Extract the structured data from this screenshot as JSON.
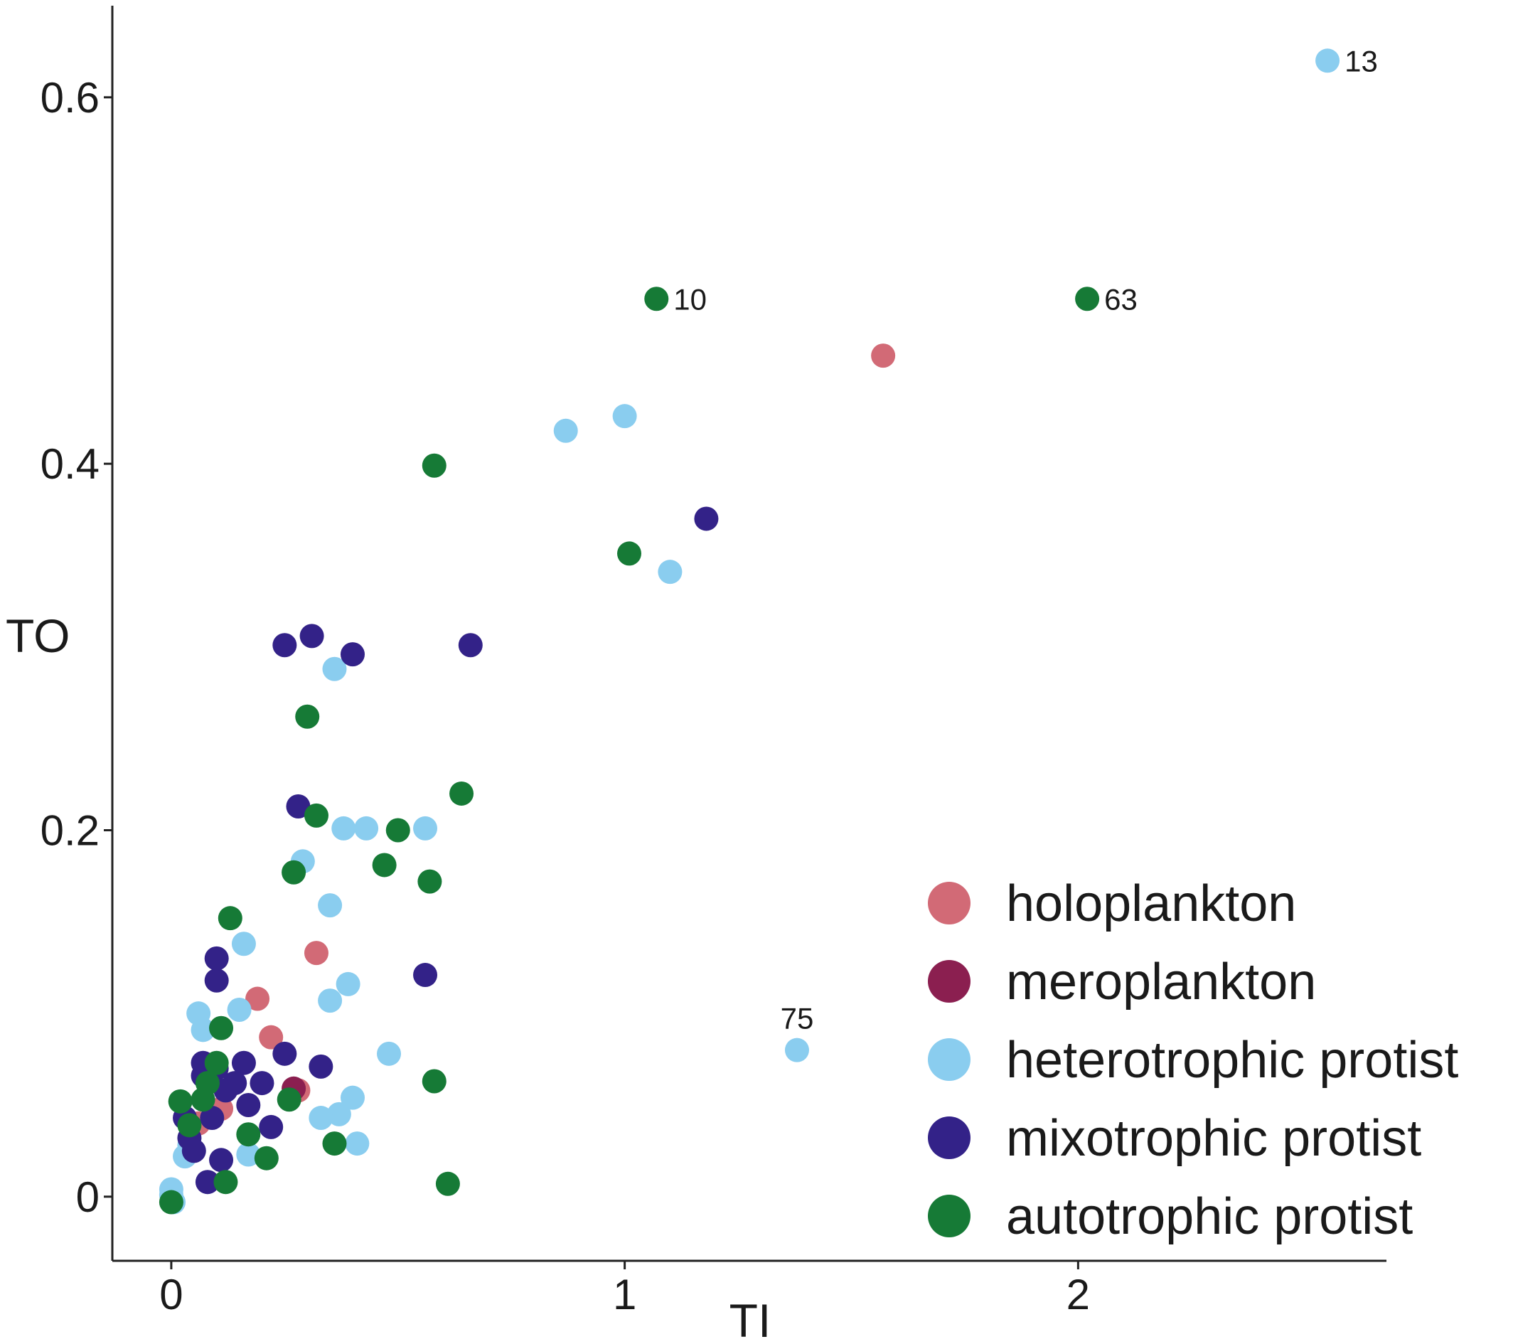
{
  "chart_data": {
    "type": "scatter",
    "xlabel": "TI",
    "ylabel": "TO",
    "xlim": [
      -0.13,
      2.68
    ],
    "ylim": [
      -0.035,
      0.65
    ],
    "xticks": [
      {
        "value": 0,
        "label": "0"
      },
      {
        "value": 1,
        "label": "1"
      },
      {
        "value": 2,
        "label": "2"
      }
    ],
    "yticks": [
      {
        "value": 0,
        "label": "0"
      },
      {
        "value": 0.2,
        "label": "0.2"
      },
      {
        "value": 0.4,
        "label": "0.4"
      },
      {
        "value": 0.6,
        "label": "0.6"
      }
    ],
    "grid": false,
    "legend_position": "bottom-right",
    "series": [
      {
        "name": "holoplankton",
        "color": "#D26A76",
        "points": [
          [
            1.57,
            0.459
          ],
          [
            0.32,
            0.133
          ],
          [
            0.19,
            0.108
          ],
          [
            0.22,
            0.087
          ],
          [
            0.11,
            0.048
          ],
          [
            0.06,
            0.04
          ],
          [
            0.28,
            0.058
          ]
        ]
      },
      {
        "name": "meroplankton",
        "color": "#8B1F50",
        "points": [
          [
            0.27,
            0.059
          ]
        ]
      },
      {
        "name": "heterotrophic protist",
        "color": "#8ACDEF",
        "points": [
          [
            2.55,
            0.62
          ],
          [
            0.87,
            0.418
          ],
          [
            1.0,
            0.426
          ],
          [
            1.1,
            0.341
          ],
          [
            0.36,
            0.288
          ],
          [
            0.29,
            0.183
          ],
          [
            0.38,
            0.201
          ],
          [
            0.43,
            0.201
          ],
          [
            0.56,
            0.201
          ],
          [
            0.35,
            0.159
          ],
          [
            0.16,
            0.138
          ],
          [
            0.39,
            0.116
          ],
          [
            0.35,
            0.107
          ],
          [
            0.06,
            0.1
          ],
          [
            0.15,
            0.102
          ],
          [
            0.07,
            0.091
          ],
          [
            0.48,
            0.078
          ],
          [
            1.38,
            0.08
          ],
          [
            0.4,
            0.054
          ],
          [
            0.37,
            0.045
          ],
          [
            0.33,
            0.043
          ],
          [
            0.41,
            0.029
          ],
          [
            0.17,
            0.023
          ],
          [
            0.04,
            0.028
          ],
          [
            0.03,
            0.022
          ],
          [
            0.0,
            0.004
          ],
          [
            0.005,
            -0.003
          ],
          [
            0.0,
            0.001
          ]
        ],
        "labeled": [
          {
            "x": 2.55,
            "y": 0.62,
            "label": "13"
          },
          {
            "x": 1.38,
            "y": 0.08,
            "label": "75"
          }
        ]
      },
      {
        "name": "mixotrophic protist",
        "color": "#332288",
        "points": [
          [
            1.18,
            0.37
          ],
          [
            0.66,
            0.301
          ],
          [
            0.25,
            0.301
          ],
          [
            0.31,
            0.306
          ],
          [
            0.4,
            0.296
          ],
          [
            0.28,
            0.213
          ],
          [
            0.56,
            0.121
          ],
          [
            0.1,
            0.118
          ],
          [
            0.1,
            0.13
          ],
          [
            0.07,
            0.073
          ],
          [
            0.1,
            0.07
          ],
          [
            0.16,
            0.073
          ],
          [
            0.25,
            0.078
          ],
          [
            0.33,
            0.071
          ],
          [
            0.07,
            0.066
          ],
          [
            0.14,
            0.062
          ],
          [
            0.2,
            0.062
          ],
          [
            0.12,
            0.058
          ],
          [
            0.17,
            0.05
          ],
          [
            0.03,
            0.043
          ],
          [
            0.09,
            0.043
          ],
          [
            0.22,
            0.038
          ],
          [
            0.04,
            0.032
          ],
          [
            0.05,
            0.025
          ],
          [
            0.11,
            0.02
          ],
          [
            0.08,
            0.008
          ]
        ]
      },
      {
        "name": "autotrophic protist",
        "color": "#167A36",
        "points": [
          [
            1.07,
            0.49
          ],
          [
            2.02,
            0.49
          ],
          [
            0.58,
            0.399
          ],
          [
            1.01,
            0.351
          ],
          [
            0.3,
            0.262
          ],
          [
            0.64,
            0.22
          ],
          [
            0.32,
            0.208
          ],
          [
            0.5,
            0.2
          ],
          [
            0.47,
            0.181
          ],
          [
            0.27,
            0.177
          ],
          [
            0.57,
            0.172
          ],
          [
            0.13,
            0.152
          ],
          [
            0.11,
            0.092
          ],
          [
            0.58,
            0.063
          ],
          [
            0.1,
            0.073
          ],
          [
            0.08,
            0.062
          ],
          [
            0.02,
            0.052
          ],
          [
            0.26,
            0.053
          ],
          [
            0.07,
            0.053
          ],
          [
            0.04,
            0.039
          ],
          [
            0.17,
            0.034
          ],
          [
            0.21,
            0.021
          ],
          [
            0.36,
            0.029
          ],
          [
            0.12,
            0.008
          ],
          [
            0.61,
            0.007
          ],
          [
            0.0,
            -0.003
          ]
        ],
        "labeled": [
          {
            "x": 1.07,
            "y": 0.49,
            "label": "10"
          },
          {
            "x": 2.02,
            "y": 0.49,
            "label": "63"
          }
        ]
      }
    ]
  }
}
